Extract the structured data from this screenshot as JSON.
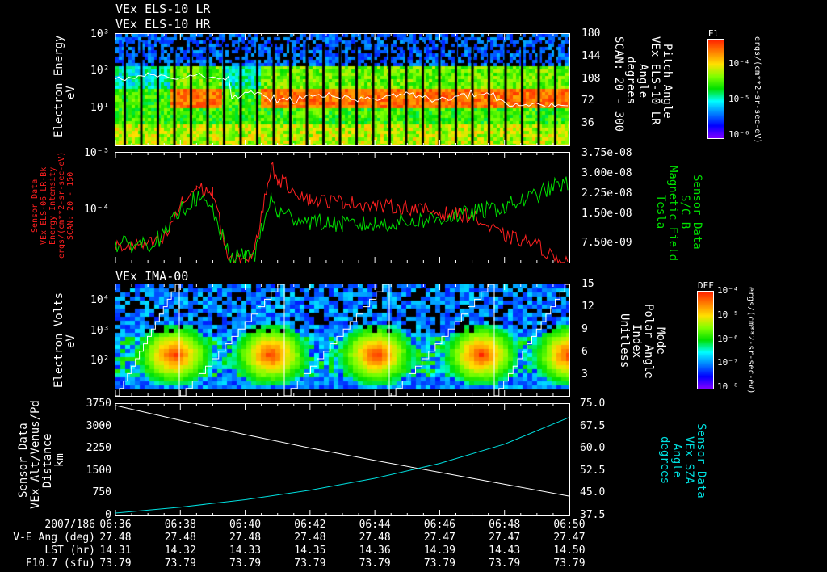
{
  "colors": {
    "red": "#ff2020",
    "green": "#00e000",
    "cyan": "#00e0e0",
    "white": "#ffffff"
  },
  "panel1": {
    "title1": "VEx ELS-10 LR",
    "title2": "VEx ELS-10 HR",
    "ylabel": [
      "Electron Energy",
      "eV"
    ],
    "yticks": [
      "10³",
      "10²",
      "10¹"
    ],
    "rticks": [
      "180",
      "144",
      "108",
      "72",
      "36"
    ],
    "rlabel": [
      "Pitch Angle",
      "VEx ELS-10 LR",
      "Angle",
      "degrees",
      "SCAN: 20 - 300"
    ],
    "colorbar": {
      "title": "El",
      "ticks": [
        "10⁻⁴",
        "10⁻⁵",
        "10⁻⁶"
      ],
      "units": "ergs/(cm**2-sr-sec-eV)"
    }
  },
  "panel2": {
    "llabel": [
      "Sensor Data",
      "VEx ELS-06 LR-Bk",
      "Energy Intensity",
      "ergs/(cm**2-sr-sec-eV)",
      "SCAN: 20 - 150"
    ],
    "yticks": [
      "10⁻³",
      "10⁻⁴"
    ],
    "rticks": [
      "3.75e-08",
      "3.00e-08",
      "2.25e-08",
      "1.50e-08",
      "7.50e-09"
    ],
    "rlabel": [
      "Sensor Data",
      "S/C B",
      "Magnetic Field",
      "Tesla"
    ]
  },
  "panel3": {
    "title": "VEx IMA-00",
    "ylabel": [
      "Electron Volts",
      "eV"
    ],
    "yticks": [
      "10⁴",
      "10³",
      "10²"
    ],
    "rticks": [
      "15",
      "12",
      "9",
      "6",
      "3"
    ],
    "rlabel": [
      "Mode",
      "Polar Angle",
      "Index",
      "Unitless"
    ],
    "colorbar": {
      "title": "DEF",
      "ticks": [
        "10⁻⁴",
        "10⁻⁵",
        "10⁻⁶",
        "10⁻⁷",
        "10⁻⁸"
      ],
      "units": "ergs/(cm**2-sr-sec-eV)"
    }
  },
  "panel4": {
    "llabel": [
      "Sensor Data",
      "VEx Alt/Venus/Pd",
      "Distance",
      "km"
    ],
    "yticks": [
      "3750",
      "3000",
      "2250",
      "1500",
      "750",
      "0"
    ],
    "rticks": [
      "75.0",
      "67.5",
      "60.0",
      "52.5",
      "45.0",
      "37.5"
    ],
    "rlabel": [
      "Sensor Data",
      "VEx SZA",
      "Angle",
      "degrees"
    ]
  },
  "footer": {
    "row_labels": [
      "2007/186",
      "V-E Ang (deg)",
      "LST (hr)",
      "F10.7 (sfu)"
    ],
    "times": [
      "06:36",
      "06:38",
      "06:40",
      "06:42",
      "06:44",
      "06:46",
      "06:48",
      "06:50"
    ],
    "ve_ang": [
      "27.48",
      "27.48",
      "27.48",
      "27.48",
      "27.48",
      "27.47",
      "27.47",
      "27.47"
    ],
    "lst": [
      "14.31",
      "14.32",
      "14.33",
      "14.35",
      "14.36",
      "14.39",
      "14.43",
      "14.50"
    ],
    "f107": [
      "73.79",
      "73.79",
      "73.79",
      "73.79",
      "73.79",
      "73.79",
      "73.79",
      "73.79"
    ]
  },
  "chart_data": [
    {
      "type": "heatmap",
      "title": "VEx ELS-10 LR / HR",
      "ylabel": "Electron Energy (eV)",
      "ylim": [
        1,
        1000
      ],
      "yscale": "log",
      "colorbar": "El ergs/(cm**2-sr-sec-eV)",
      "clim": [
        1e-06,
        0.0003162
      ]
    },
    {
      "type": "line",
      "xlabel": "UT",
      "series": [
        {
          "name": "ELS-06 Energy Intensity",
          "axis": "left",
          "x_min": [
            0,
            1,
            1.5,
            2,
            2.5,
            3,
            3.5,
            4,
            4.3,
            4.8,
            5,
            6,
            7,
            8,
            9,
            10,
            11,
            11.5,
            12,
            12.5,
            13,
            13.5,
            14
          ],
          "values": [
            2.3e-05,
            2.5e-05,
            3e-05,
            0.00012,
            0.00025,
            0.0002,
            1.3e-05,
            1.3e-05,
            2e-05,
            0.0006,
            0.00035,
            0.00015,
            0.00014,
            0.00012,
            0.00011,
            9e-05,
            8e-05,
            5e-05,
            3.5e-05,
            3e-05,
            2.5e-05,
            1.5e-05,
            1.3e-05
          ]
        },
        {
          "name": "S/C B Magnetic Field",
          "axis": "right",
          "x_min": [
            0,
            1,
            1.5,
            2,
            2.5,
            3,
            3.5,
            4,
            4.3,
            4.8,
            5,
            6,
            7,
            8,
            9,
            10,
            11,
            11.5,
            12,
            12.5,
            13,
            13.5,
            14
          ],
          "values": [
            6e-09,
            6.5e-09,
            9e-09,
            1.8e-08,
            2.2e-08,
            1.8e-08,
            2e-09,
            2e-09,
            3e-09,
            2.2e-08,
            1.7e-08,
            1.4e-08,
            1.3e-08,
            1.3e-08,
            1.4e-08,
            1.5e-08,
            1.7e-08,
            1.8e-08,
            1.9e-08,
            2.1e-08,
            2.3e-08,
            2.6e-08,
            2.7e-08
          ]
        }
      ],
      "ylim_left": [
        1.2e-05,
        0.001
      ],
      "ylim_right": [
        0,
        3.75e-08
      ]
    },
    {
      "type": "heatmap",
      "title": "VEx IMA-00",
      "ylabel": "Electron Volts (eV)",
      "ylim": [
        8,
        30000
      ],
      "yscale": "log",
      "colorbar": "DEF ergs/(cm**2-sr-sec-eV)",
      "clim": [
        1e-08,
        0.0001
      ],
      "overlay": "Mode Polar Angle Index 0-15 sawtooth"
    },
    {
      "type": "line",
      "xlabel": "UT",
      "series": [
        {
          "name": "VEx Alt/Venus/Pd Distance (km)",
          "axis": "left",
          "x_min": [
            0,
            2,
            4,
            6,
            8,
            10,
            12,
            14
          ],
          "values": [
            3700,
            3200,
            2720,
            2270,
            1850,
            1450,
            1050,
            650
          ]
        },
        {
          "name": "VEx SZA Angle (deg)",
          "axis": "right",
          "x_min": [
            0,
            2,
            4,
            6,
            8,
            10,
            12,
            14
          ],
          "values": [
            38.3,
            40.3,
            42.8,
            46,
            50,
            55,
            61.5,
            70.5
          ]
        }
      ],
      "ylim_left": [
        0,
        3750
      ],
      "ylim_right": [
        37.5,
        75
      ]
    }
  ]
}
